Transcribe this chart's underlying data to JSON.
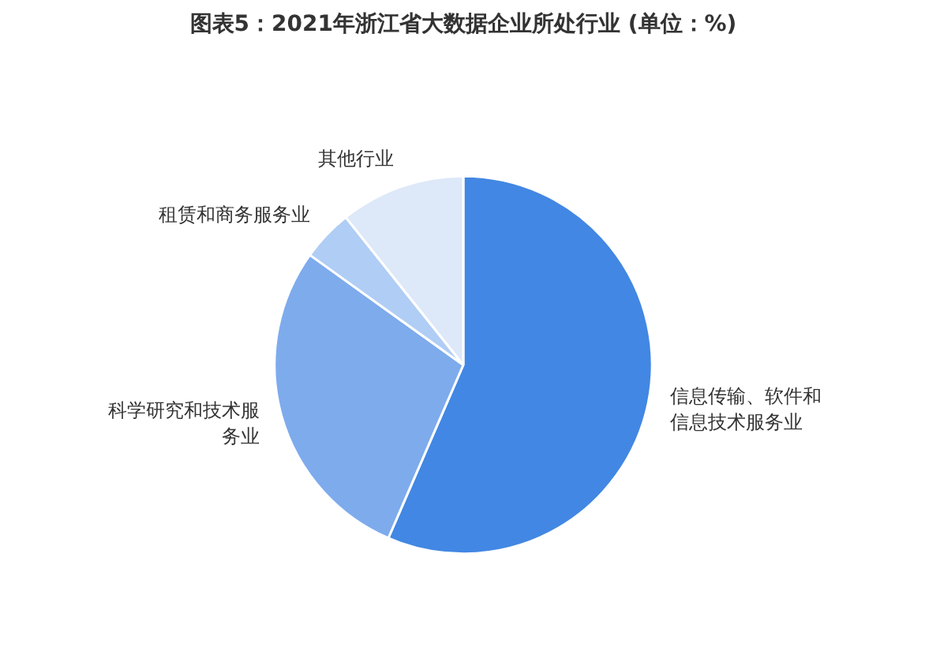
{
  "chart_data": {
    "type": "pie",
    "title": "图表5：2021年浙江省大数据企业所处行业 (单位：%)",
    "categories": [
      "信息传输、软件和信息技术服务业",
      "科学研究和技术服务业",
      "租赁和商务服务业",
      "其他行业"
    ],
    "values": [
      56.5,
      28.4,
      4.4,
      10.7
    ],
    "colors": [
      "#4287e3",
      "#7eabec",
      "#b0cdf5",
      "#dde8f9"
    ],
    "legend": false
  }
}
